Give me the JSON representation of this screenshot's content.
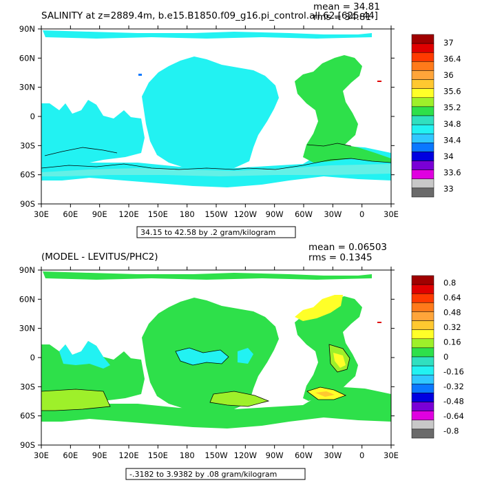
{
  "panels": [
    {
      "id": "top",
      "title": "SALINITY at z=2889.4m, b.e15.B1850.f09_g16.pi_control.all.62.[625-44]",
      "stats": {
        "mean": "mean = 34.81",
        "rms": "rms = 34.81"
      },
      "contour_info": "34.15 to 42.58 by .2 gram/kilogram"
    },
    {
      "id": "bottom",
      "title": "(MODEL - LEVITUS/PHC2)",
      "stats": {
        "mean": "mean = 0.06503",
        "rms": "rms = 0.1345"
      },
      "contour_info": "-.3182 to 3.9382 by .08 gram/kilogram"
    }
  ],
  "colors": {
    "land": "#ffffff",
    "cyan": "#22f2f2",
    "light_cyan": "#64f0e6",
    "teal": "#30e0c0",
    "green": "#2ee04a",
    "lime": "#9ef02a",
    "yellow": "#ffff28",
    "contour": "#000000",
    "frame": "#000000"
  },
  "chart_data": [
    {
      "type": "heatmap",
      "title": "SALINITY at z=2889.4m, b.e15.B1850.f09_g16.pi_control.all.62.[625-44]",
      "subtitle": "",
      "x_ticks": [
        "30E",
        "60E",
        "90E",
        "120E",
        "150E",
        "180",
        "150W",
        "120W",
        "90W",
        "60W",
        "30W",
        "0",
        "30E"
      ],
      "y_ticks": [
        "90N",
        "60N",
        "30N",
        "0",
        "30S",
        "60S",
        "90S"
      ],
      "xlim": [
        30,
        390
      ],
      "ylim": [
        -90,
        90
      ],
      "colorbar": {
        "labels": [
          "37",
          "36.4",
          "36",
          "35.6",
          "35.2",
          "34.8",
          "34.4",
          "34",
          "33.6",
          "33"
        ],
        "colors": [
          "#a00000",
          "#e00000",
          "#ff3a00",
          "#ff7a1a",
          "#ffa53a",
          "#ffc830",
          "#ffff28",
          "#9ef02a",
          "#2ee04a",
          "#30e0c0",
          "#22f2f2",
          "#30c8ff",
          "#0a78ff",
          "#0000e0",
          "#7a00d6",
          "#e000e0",
          "#c8c8c8",
          "#6a6a6a"
        ]
      },
      "stats": {
        "mean": 34.81,
        "rms": 34.81
      },
      "contour_range": "34.15 to 42.58 by .2 gram/kilogram",
      "regions": [
        {
          "name": "Pacific/Indian/Southern",
          "value_class": "34.8"
        },
        {
          "name": "Atlantic",
          "value_class": "35.2"
        }
      ]
    },
    {
      "type": "heatmap",
      "title": "(MODEL - LEVITUS/PHC2)",
      "x_ticks": [
        "30E",
        "60E",
        "90E",
        "120E",
        "150E",
        "180",
        "150W",
        "120W",
        "90W",
        "60W",
        "30W",
        "0",
        "30E"
      ],
      "y_ticks": [
        "90N",
        "60N",
        "30N",
        "0",
        "30S",
        "60S",
        "90S"
      ],
      "xlim": [
        30,
        390
      ],
      "ylim": [
        -90,
        90
      ],
      "colorbar": {
        "labels": [
          "0.8",
          "0.64",
          "0.48",
          "0.32",
          "0.16",
          "0",
          "-0.16",
          "-0.32",
          "-0.48",
          "-0.64",
          "-0.8"
        ],
        "colors": [
          "#a00000",
          "#e00000",
          "#ff3a00",
          "#ff7a1a",
          "#ffa53a",
          "#ffc830",
          "#ffff28",
          "#9ef02a",
          "#2ee04a",
          "#30e0c0",
          "#22f2f2",
          "#30c8ff",
          "#0a78ff",
          "#0000e0",
          "#7a00d6",
          "#e000e0",
          "#c8c8c8",
          "#6a6a6a"
        ]
      },
      "stats": {
        "mean": 0.06503,
        "rms": 0.1345
      },
      "contour_range": "-.3182 to 3.9382 by .08 gram/kilogram",
      "regions": [
        {
          "name": "Most oceans",
          "value_class": "0 to 0.16"
        },
        {
          "name": "Western Pacific / Indian north",
          "value_class": "-0.16 to 0"
        },
        {
          "name": "North Atlantic subpolar",
          "value_class": "0.16 to 0.32"
        },
        {
          "name": "South Atlantic patch",
          "value_class": "0.16 to 0.32"
        }
      ]
    }
  ]
}
